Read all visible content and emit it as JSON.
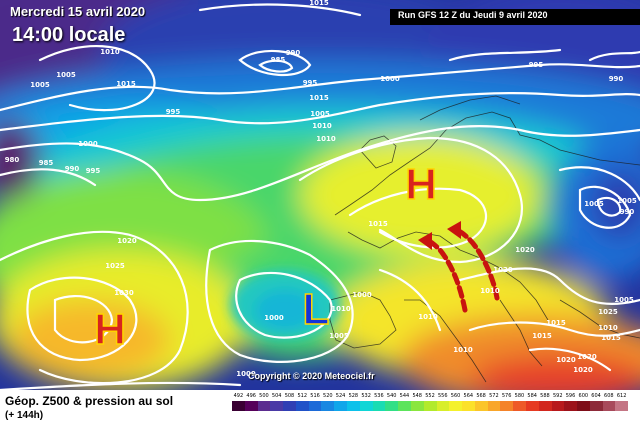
{
  "header": {
    "date_line": "Mercredi 15 avril 2020",
    "time_line": "14:00 locale",
    "run_info": "Run GFS 12 Z du Jeudi 9 avril 2020"
  },
  "footer": {
    "title": "Géop. Z500 & pression au sol",
    "subtitle": "(+ 144h)",
    "copyright": "Copyright © 2020 Meteociel.fr"
  },
  "legend": {
    "labels": [
      "492",
      "496",
      "500",
      "504",
      "508",
      "512",
      "516",
      "520",
      "524",
      "528",
      "532",
      "536",
      "540",
      "544",
      "548",
      "552",
      "556",
      "560",
      "564",
      "568",
      "572",
      "576",
      "580",
      "584",
      "588",
      "592",
      "596",
      "600",
      "604",
      "608",
      "612"
    ],
    "colors": [
      "#3a0033",
      "#56005a",
      "#5b2c8f",
      "#4a3aa6",
      "#303fb4",
      "#2052c8",
      "#1c6ad8",
      "#1887e2",
      "#10a6ea",
      "#0cc1ea",
      "#10d6d6",
      "#19dcb3",
      "#31df86",
      "#5ce45b",
      "#8ae63e",
      "#b2ea2c",
      "#d8ee2a",
      "#f4f12c",
      "#fbe12a",
      "#fbc52a",
      "#f9a62a",
      "#f4832a",
      "#ee5a28",
      "#e63a22",
      "#d2271e",
      "#b8191c",
      "#9c121a",
      "#7e0d18",
      "#8d2a39",
      "#a84a5b",
      "#c47584"
    ]
  },
  "pressure_centers": [
    {
      "type": "H",
      "color": "#d8241e",
      "outline": "#ffd400"
    },
    {
      "type": "H",
      "color": "#d8241e",
      "outline": "#ffd400"
    },
    {
      "type": "L",
      "color": "#1432d8",
      "outline": "#ffd400"
    }
  ],
  "isobar_labels": [
    "1005",
    "1010",
    "985",
    "990",
    "995",
    "1000",
    "1005",
    "1010",
    "1015",
    "980",
    "985",
    "990",
    "995",
    "1000",
    "1005",
    "1010",
    "1015",
    "1020",
    "1025",
    "1030",
    "1015",
    "1020",
    "1020",
    "1015",
    "1010",
    "1000",
    "1000",
    "1005",
    "1005",
    "1010",
    "1015",
    "1010",
    "1005",
    "995",
    "990",
    "1005",
    "990",
    "995",
    "1010",
    "1015",
    "1020",
    "1020",
    "1015",
    "1010",
    "1025",
    "1020",
    "1000"
  ],
  "arrows": {
    "color": "#c8140f",
    "count": 2
  }
}
